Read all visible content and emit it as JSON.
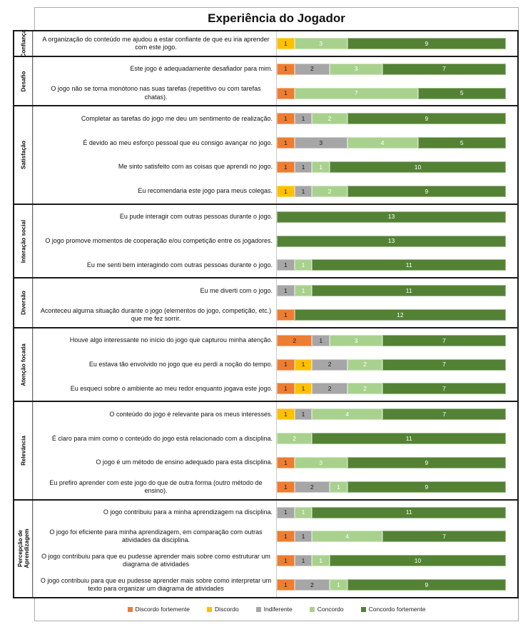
{
  "chart_data": {
    "type": "bar",
    "orientation": "horizontal-stacked",
    "title": "Experiência do Jogador",
    "total_per_row": 13,
    "legend_position": "bottom",
    "legend": [
      {
        "label": "Discordo fortemente",
        "color": "#ED7D31"
      },
      {
        "label": "Discordo",
        "color": "#FFC000"
      },
      {
        "label": "Indiferente",
        "color": "#A6A6A6"
      },
      {
        "label": "Concordo",
        "color": "#A9D18E"
      },
      {
        "label": "Concordo fortemente",
        "color": "#548235"
      }
    ],
    "value_order_note": "values arrays follow legend order: [Discordo fortemente, Discordo, Indiferente, Concordo, Concordo fortemente]",
    "groups": [
      {
        "category": "Confiança",
        "items": [
          {
            "label": "A organização do conteúdo me ajudou a estar confiante de que eu iria aprender com este jogo.",
            "values": [
              0,
              1,
              0,
              3,
              9
            ]
          }
        ]
      },
      {
        "category": "Desafio",
        "items": [
          {
            "label": "Este jogo é adequadamente desafiador para mim.",
            "values": [
              1,
              0,
              2,
              3,
              7
            ]
          },
          {
            "label": "O jogo não se torna monótono nas suas tarefas (repetitivo ou com tarefas chatas).",
            "values": [
              1,
              0,
              0,
              7,
              5
            ]
          }
        ]
      },
      {
        "category": "Satisfação",
        "items": [
          {
            "label": "Completar as tarefas do jogo me deu um sentimento de realização.",
            "values": [
              1,
              0,
              1,
              2,
              9
            ]
          },
          {
            "label": "É devido ao meu esforço pessoal que eu consigo avançar no jogo.",
            "values": [
              1,
              0,
              3,
              4,
              5
            ]
          },
          {
            "label": "Me sinto satisfeito com as coisas que aprendi no jogo.",
            "values": [
              1,
              0,
              1,
              1,
              10
            ]
          },
          {
            "label": "Eu recomendaria este jogo para meus colegas.",
            "values": [
              0,
              1,
              1,
              2,
              9
            ]
          }
        ]
      },
      {
        "category": "Interação social",
        "items": [
          {
            "label": "Eu pude interagir com outras pessoas durante o jogo.",
            "values": [
              0,
              0,
              0,
              0,
              13
            ]
          },
          {
            "label": "O jogo promove momentos de cooperação e/ou competição entre os jogadores.",
            "values": [
              0,
              0,
              0,
              0,
              13
            ]
          },
          {
            "label": "Eu me senti bem interagindo com outras pessoas durante o jogo.",
            "values": [
              0,
              0,
              1,
              1,
              11
            ]
          }
        ]
      },
      {
        "category": "Diversão",
        "items": [
          {
            "label": "Eu me diverti com o jogo.",
            "values": [
              0,
              0,
              1,
              1,
              11
            ]
          },
          {
            "label": "Aconteceu alguma situação durante o jogo (elementos do jogo, competição, etc.) que me fez sorrir.",
            "values": [
              1,
              0,
              0,
              0,
              12
            ]
          }
        ]
      },
      {
        "category": "Atenção focada",
        "items": [
          {
            "label": "Houve algo interessante no início do jogo que capturou minha atenção.",
            "values": [
              2,
              0,
              1,
              3,
              7
            ]
          },
          {
            "label": "Eu estava tão envolvido no jogo que eu perdi a noção do tempo.",
            "values": [
              1,
              1,
              2,
              2,
              7
            ]
          },
          {
            "label": "Eu esqueci sobre o ambiente ao meu redor enquanto jogava este jogo.",
            "values": [
              1,
              1,
              2,
              2,
              7
            ]
          }
        ]
      },
      {
        "category": "Relevância",
        "items": [
          {
            "label": "O conteúdo do jogo é relevante para os meus interesses.",
            "values": [
              0,
              1,
              1,
              4,
              7
            ]
          },
          {
            "label": "É claro para mim como o conteúdo do jogo está relacionado com a disciplina.",
            "values": [
              0,
              0,
              0,
              2,
              11
            ]
          },
          {
            "label": "O jogo é um método de ensino adequado para esta disciplina.",
            "values": [
              1,
              0,
              0,
              3,
              9
            ]
          },
          {
            "label": "Eu prefiro aprender com este jogo do que de outra forma (outro método de ensino).",
            "values": [
              1,
              0,
              2,
              1,
              9
            ]
          }
        ]
      },
      {
        "category": "Percepção de Aprendizagem",
        "items": [
          {
            "label": "O jogo contribuiu para a minha aprendizagem na disciplina.",
            "values": [
              0,
              0,
              1,
              1,
              11
            ]
          },
          {
            "label": "O jogo foi eficiente para minha aprendizagem, em comparação com outras atividades da disciplina.",
            "values": [
              1,
              0,
              1,
              4,
              7
            ]
          },
          {
            "label": "O jogo contribuiu para que eu pudesse aprender mais sobre como estruturar um diagrama de atividades",
            "values": [
              1,
              0,
              1,
              1,
              10
            ]
          },
          {
            "label": "O jogo contribuiu para que eu pudesse aprender mais sobre como interpretar um texto para organizar um diagrama de atividades",
            "values": [
              1,
              0,
              2,
              1,
              9
            ]
          }
        ]
      }
    ]
  }
}
